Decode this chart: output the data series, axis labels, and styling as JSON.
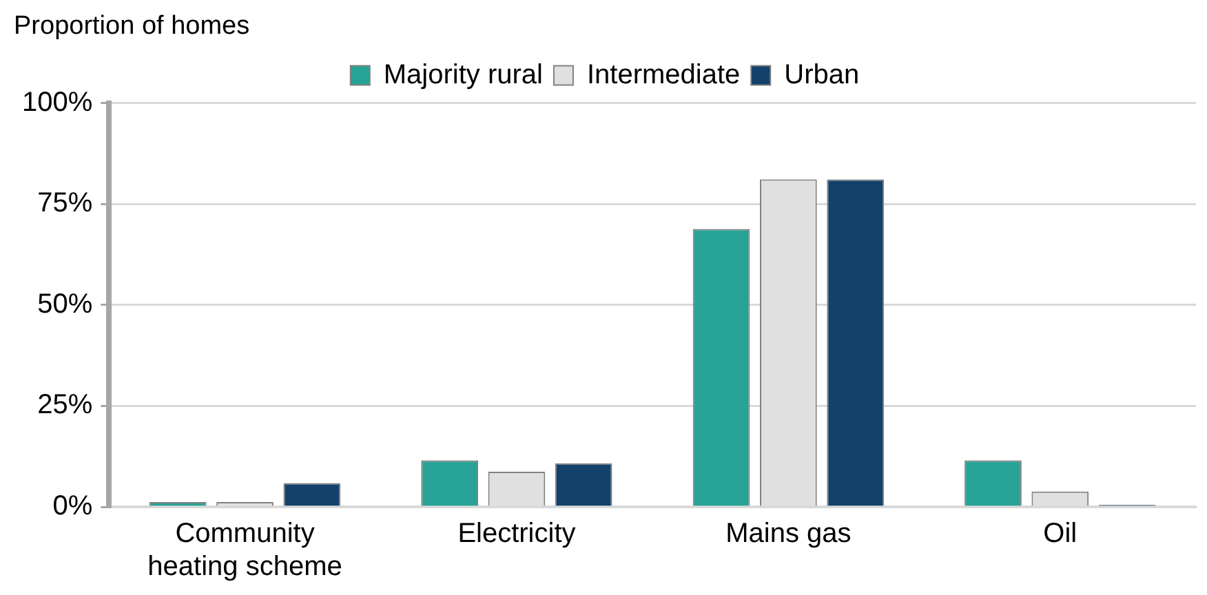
{
  "chart_data": {
    "type": "bar",
    "ylabel": "Proportion of homes",
    "categories": [
      "Community heating scheme",
      "Electricity",
      "Mains gas",
      "Oil"
    ],
    "series": [
      {
        "name": "Majority rural",
        "color": "#26a396",
        "values": [
          1.2,
          11.5,
          68.8,
          11.5
        ]
      },
      {
        "name": "Intermediate",
        "color": "#e0e0e0",
        "values": [
          1.2,
          8.7,
          81.1,
          3.8
        ]
      },
      {
        "name": "Urban",
        "color": "#12416b",
        "values": [
          5.9,
          10.8,
          81.1,
          0.5
        ]
      }
    ],
    "ylim": [
      0,
      100
    ],
    "yticks": [
      {
        "value": 0,
        "label": "0%"
      },
      {
        "value": 25,
        "label": "25%"
      },
      {
        "value": 50,
        "label": "50%"
      },
      {
        "value": 75,
        "label": "75%"
      },
      {
        "value": 100,
        "label": "100%"
      }
    ],
    "grid": "y",
    "legend": "top"
  }
}
